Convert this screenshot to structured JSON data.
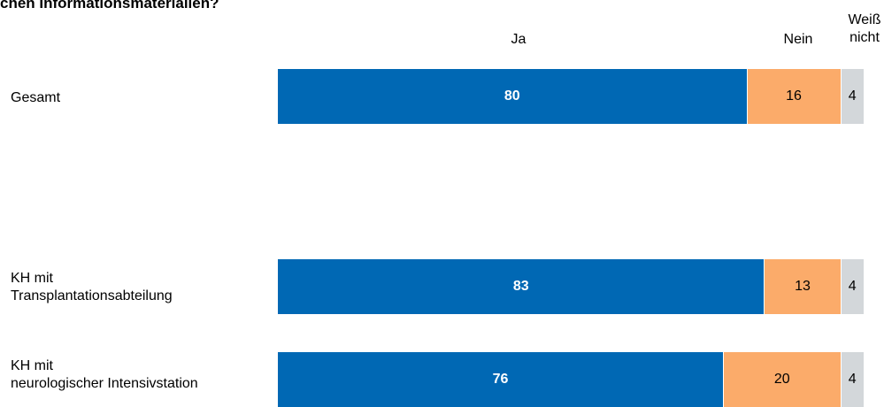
{
  "title": "chen Informationsmaterialien?",
  "colors": {
    "ja": "#0068b4",
    "nein": "#fbab6a",
    "weiss_nicht": "#d3d7da"
  },
  "chart_data": {
    "type": "bar",
    "orientation": "horizontal",
    "stacked": true,
    "categories": [
      "Gesamt",
      "KH mit Transplantationsabteilung",
      "KH mit neurologischer Intensivstation"
    ],
    "series": [
      {
        "name": "Ja",
        "values": [
          80,
          83,
          76
        ]
      },
      {
        "name": "Nein",
        "values": [
          16,
          13,
          20
        ]
      },
      {
        "name": "Weiß nicht",
        "values": [
          4,
          4,
          4
        ]
      }
    ],
    "legend_position": "top",
    "grid": false,
    "xlim": [
      0,
      100
    ]
  },
  "headers": {
    "ja": "Ja",
    "nein": "Nein",
    "weiss_line1": "Weiß",
    "weiss_line2": "nicht"
  },
  "rows": [
    {
      "label": "Gesamt",
      "ja": "80",
      "nein": "16",
      "weiss": "4"
    },
    {
      "label": "KH mit\nTransplantationsabteilung",
      "ja": "83",
      "nein": "13",
      "weiss": "4"
    },
    {
      "label": "KH mit\nneurologischer Intensivstation",
      "ja": "76",
      "nein": "20",
      "weiss": "4"
    }
  ]
}
